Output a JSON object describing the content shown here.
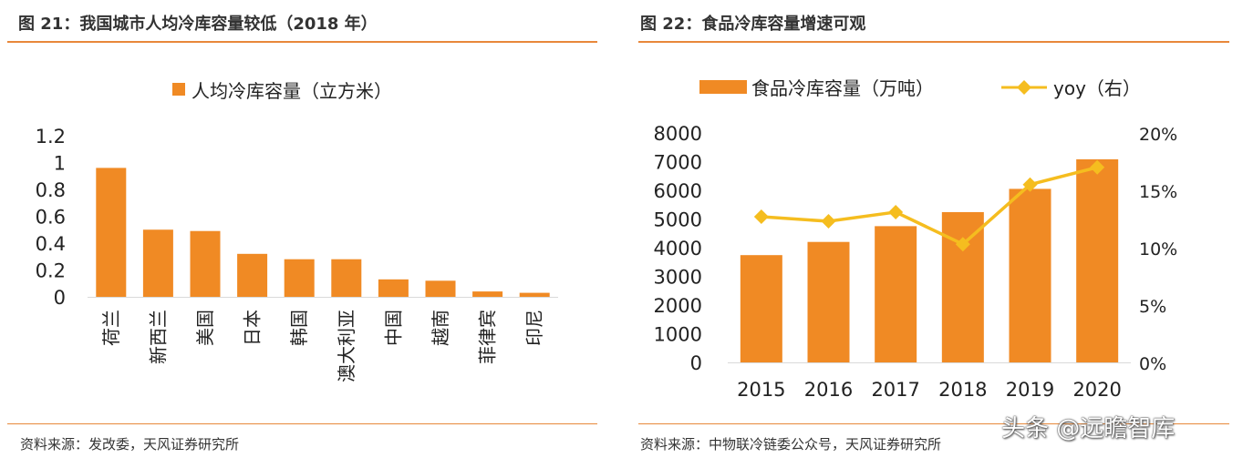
{
  "left": {
    "figure_title": "图 21：我国城市人均冷库容量较低（2018 年）",
    "source": "资料来源：发改委，天风证券研究所"
  },
  "right": {
    "figure_title": "图 22：食品冷库容量增速可观",
    "source": "资料来源：中物联冷链委公众号，天风证券研究所"
  },
  "watermark": "头条 @远瞻智库",
  "colors": {
    "bar": "#f08a24",
    "line": "#f5bd1f",
    "rule": "#e8883a"
  },
  "chart_data": [
    {
      "type": "bar",
      "title": "",
      "legend": [
        "人均冷库容量（立方米）"
      ],
      "legend_position": "top",
      "categories": [
        "荷兰",
        "新西兰",
        "美国",
        "日本",
        "韩国",
        "澳大利亚",
        "中国",
        "越南",
        "菲律宾",
        "印尼"
      ],
      "series": [
        {
          "name": "人均冷库容量（立方米）",
          "values": [
            0.96,
            0.5,
            0.49,
            0.32,
            0.28,
            0.28,
            0.13,
            0.12,
            0.04,
            0.03
          ]
        }
      ],
      "ylim": [
        0,
        1.2
      ],
      "yticks": [
        "1.2",
        "1",
        "0.8",
        "0.6",
        "0.4",
        "0.2",
        "0"
      ],
      "grid": false
    },
    {
      "type": "bar+line",
      "title": "",
      "legend": [
        "食品冷库容量（万吨）",
        "yoy（右）"
      ],
      "legend_position": "top",
      "categories": [
        "2015",
        "2016",
        "2017",
        "2018",
        "2019",
        "2020"
      ],
      "series": [
        {
          "name": "食品冷库容量（万吨）",
          "type": "bar",
          "axis": "left",
          "values": [
            3740,
            4200,
            4750,
            5240,
            6050,
            7080
          ]
        },
        {
          "name": "yoy（右）",
          "type": "line",
          "axis": "right",
          "values": [
            12.7,
            12.3,
            13.1,
            10.3,
            15.5,
            17.0
          ]
        }
      ],
      "ylim_left": [
        0,
        8000
      ],
      "yticks_left": [
        "0",
        "1000",
        "2000",
        "3000",
        "4000",
        "5000",
        "6000",
        "7000",
        "8000"
      ],
      "ylim_right": [
        0,
        20
      ],
      "yticks_right": [
        "0%",
        "5%",
        "10%",
        "15%",
        "20%"
      ],
      "grid": false
    }
  ]
}
